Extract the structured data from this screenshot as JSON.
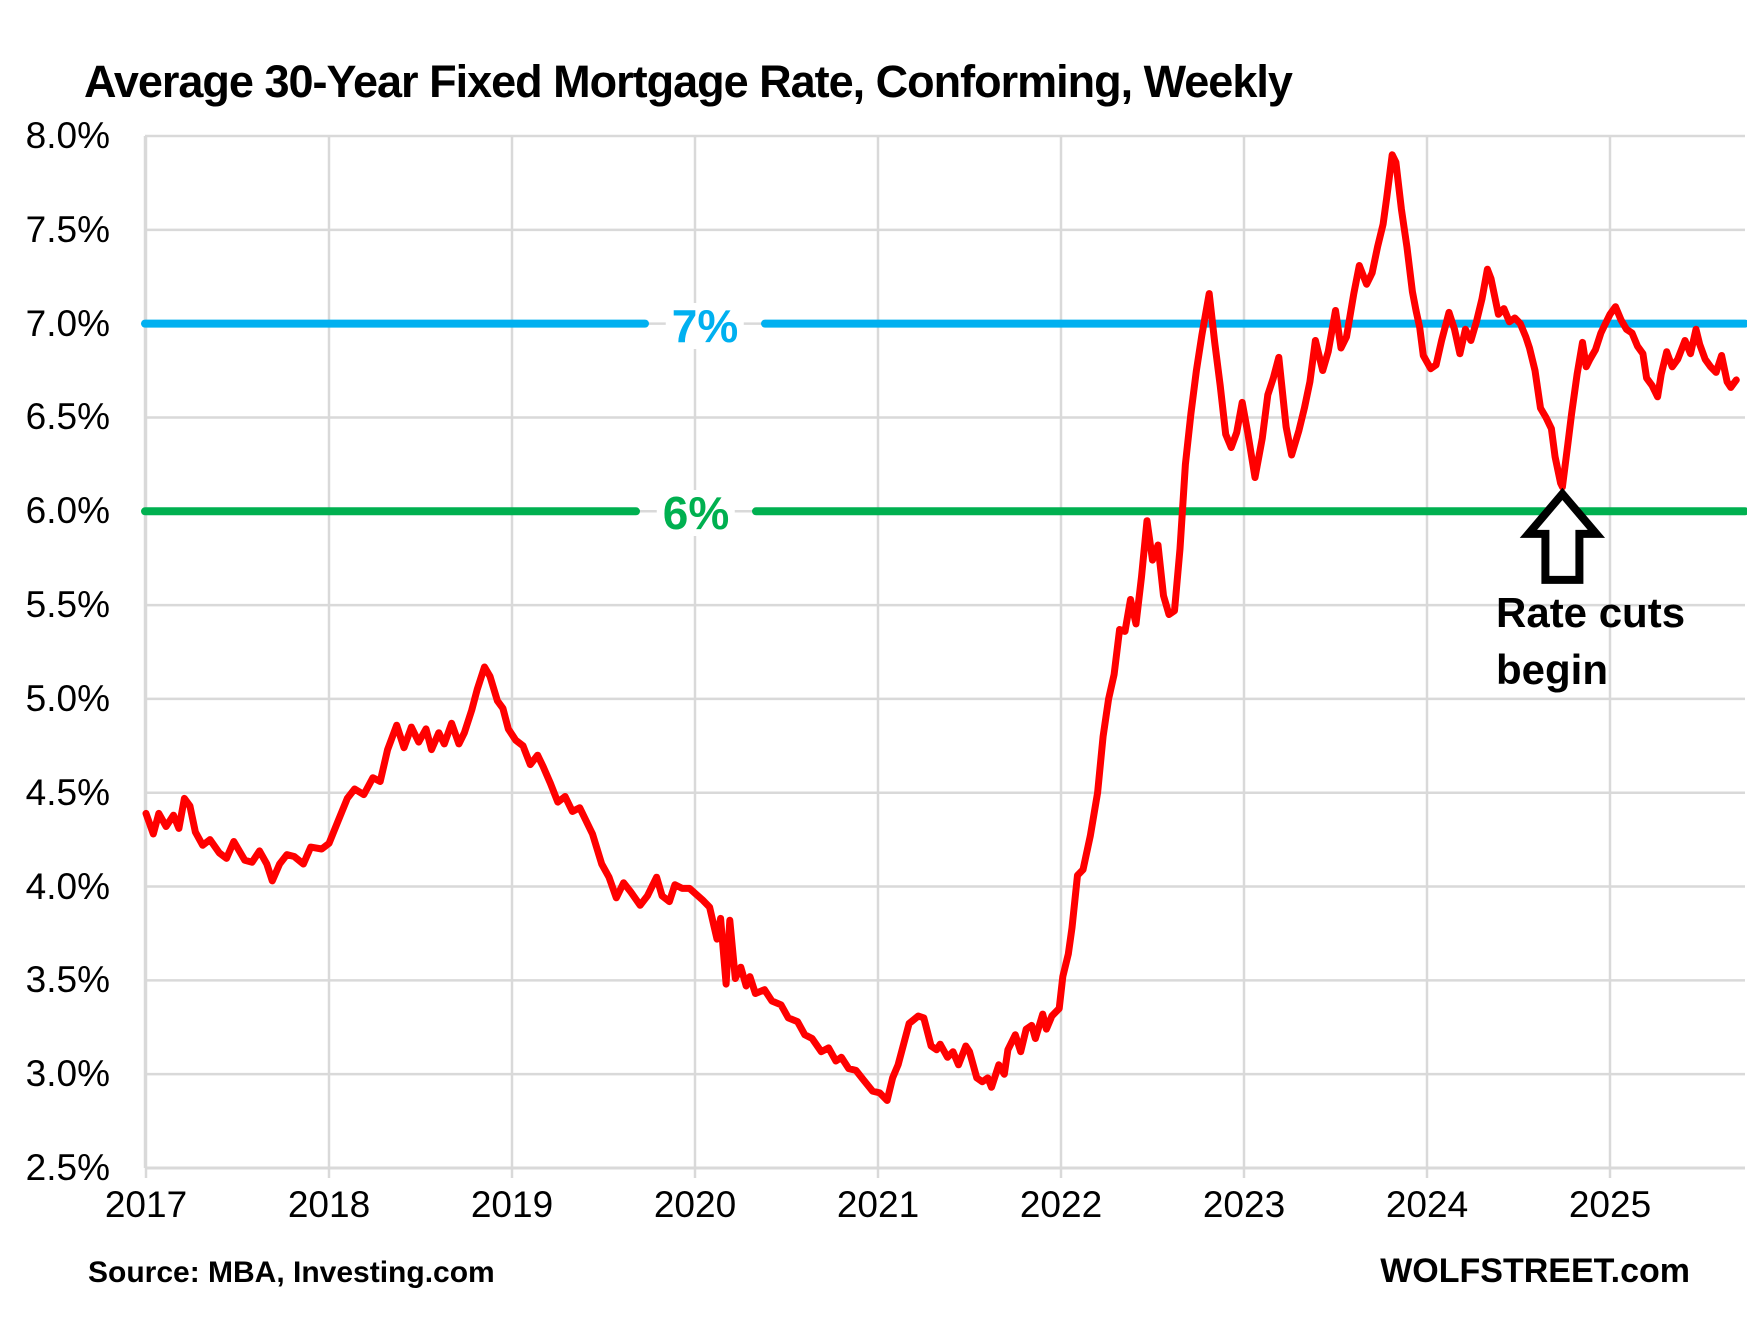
{
  "page": {
    "title": "Average 30-Year Fixed Mortgage Rate, Conforming, Weekly",
    "source": "Source: MBA, Investing.com",
    "branding": "WOLFSTREET.com"
  },
  "chart_data": {
    "type": "line",
    "title": "Average 30-Year Fixed Mortgage Rate, Conforming, Weekly",
    "xlabel": "",
    "ylabel": "",
    "grid": true,
    "grid_color": "#D9D9D9",
    "x_axis": {
      "min": 2017.0,
      "max": 2025.72,
      "ticks": [
        2017,
        2018,
        2019,
        2020,
        2021,
        2022,
        2023,
        2024,
        2025
      ],
      "tick_labels": [
        "2017",
        "2018",
        "2019",
        "2020",
        "2021",
        "2022",
        "2023",
        "2024",
        "2025"
      ]
    },
    "y_axis": {
      "min": 2.5,
      "max": 8.0,
      "tick_step": 0.5,
      "ticks": [
        8.0,
        7.5,
        7.0,
        6.5,
        6.0,
        5.5,
        5.0,
        4.5,
        4.0,
        3.5,
        3.0,
        2.5
      ],
      "tick_labels": [
        "8.0%",
        "7.5%",
        "7.0%",
        "6.5%",
        "6.0%",
        "5.5%",
        "5.0%",
        "4.5%",
        "4.0%",
        "3.5%",
        "3.0%",
        "2.5%"
      ]
    },
    "ref_lines": [
      {
        "label": "7%",
        "value": 7.0,
        "color": "#00B0F0"
      },
      {
        "label": "6%",
        "value": 6.0,
        "color": "#00B050"
      }
    ],
    "annotation": {
      "line1": "Rate cuts",
      "line2": "begin",
      "arrow_points_to": {
        "x": 2024.74,
        "y": 6.13
      }
    },
    "series": [
      {
        "name": "Average 30-year fixed mortgage rate, weekly",
        "color": "#FF0000",
        "points": [
          [
            2017.0,
            4.39
          ],
          [
            2017.04,
            4.28
          ],
          [
            2017.07,
            4.39
          ],
          [
            2017.11,
            4.32
          ],
          [
            2017.15,
            4.38
          ],
          [
            2017.18,
            4.31
          ],
          [
            2017.21,
            4.47
          ],
          [
            2017.24,
            4.43
          ],
          [
            2017.27,
            4.29
          ],
          [
            2017.31,
            4.22
          ],
          [
            2017.35,
            4.25
          ],
          [
            2017.4,
            4.18
          ],
          [
            2017.44,
            4.15
          ],
          [
            2017.48,
            4.24
          ],
          [
            2017.54,
            4.14
          ],
          [
            2017.58,
            4.13
          ],
          [
            2017.62,
            4.19
          ],
          [
            2017.66,
            4.12
          ],
          [
            2017.69,
            4.03
          ],
          [
            2017.73,
            4.12
          ],
          [
            2017.77,
            4.17
          ],
          [
            2017.81,
            4.16
          ],
          [
            2017.86,
            4.12
          ],
          [
            2017.9,
            4.21
          ],
          [
            2017.96,
            4.2
          ],
          [
            2018.0,
            4.23
          ],
          [
            2018.05,
            4.35
          ],
          [
            2018.1,
            4.47
          ],
          [
            2018.14,
            4.52
          ],
          [
            2018.19,
            4.49
          ],
          [
            2018.24,
            4.58
          ],
          [
            2018.28,
            4.56
          ],
          [
            2018.32,
            4.73
          ],
          [
            2018.37,
            4.86
          ],
          [
            2018.41,
            4.74
          ],
          [
            2018.45,
            4.85
          ],
          [
            2018.49,
            4.77
          ],
          [
            2018.53,
            4.84
          ],
          [
            2018.56,
            4.73
          ],
          [
            2018.6,
            4.82
          ],
          [
            2018.63,
            4.76
          ],
          [
            2018.67,
            4.87
          ],
          [
            2018.71,
            4.76
          ],
          [
            2018.74,
            4.82
          ],
          [
            2018.78,
            4.94
          ],
          [
            2018.81,
            5.05
          ],
          [
            2018.85,
            5.17
          ],
          [
            2018.88,
            5.12
          ],
          [
            2018.92,
            4.99
          ],
          [
            2018.95,
            4.95
          ],
          [
            2018.98,
            4.84
          ],
          [
            2019.02,
            4.78
          ],
          [
            2019.06,
            4.75
          ],
          [
            2019.1,
            4.65
          ],
          [
            2019.14,
            4.7
          ],
          [
            2019.17,
            4.64
          ],
          [
            2019.21,
            4.55
          ],
          [
            2019.25,
            4.45
          ],
          [
            2019.29,
            4.48
          ],
          [
            2019.33,
            4.4
          ],
          [
            2019.37,
            4.42
          ],
          [
            2019.44,
            4.28
          ],
          [
            2019.49,
            4.12
          ],
          [
            2019.53,
            4.05
          ],
          [
            2019.57,
            3.94
          ],
          [
            2019.61,
            4.02
          ],
          [
            2019.65,
            3.97
          ],
          [
            2019.7,
            3.9
          ],
          [
            2019.74,
            3.95
          ],
          [
            2019.79,
            4.05
          ],
          [
            2019.82,
            3.95
          ],
          [
            2019.86,
            3.92
          ],
          [
            2019.89,
            4.01
          ],
          [
            2019.93,
            3.99
          ],
          [
            2019.97,
            3.99
          ],
          [
            2020.04,
            3.93
          ],
          [
            2020.08,
            3.89
          ],
          [
            2020.12,
            3.72
          ],
          [
            2020.14,
            3.83
          ],
          [
            2020.17,
            3.48
          ],
          [
            2020.19,
            3.82
          ],
          [
            2020.22,
            3.51
          ],
          [
            2020.25,
            3.57
          ],
          [
            2020.28,
            3.47
          ],
          [
            2020.3,
            3.52
          ],
          [
            2020.33,
            3.43
          ],
          [
            2020.38,
            3.45
          ],
          [
            2020.42,
            3.39
          ],
          [
            2020.47,
            3.37
          ],
          [
            2020.51,
            3.3
          ],
          [
            2020.56,
            3.28
          ],
          [
            2020.6,
            3.21
          ],
          [
            2020.64,
            3.19
          ],
          [
            2020.69,
            3.12
          ],
          [
            2020.73,
            3.14
          ],
          [
            2020.77,
            3.07
          ],
          [
            2020.8,
            3.09
          ],
          [
            2020.84,
            3.03
          ],
          [
            2020.88,
            3.02
          ],
          [
            2020.92,
            2.97
          ],
          [
            2020.97,
            2.91
          ],
          [
            2021.01,
            2.9
          ],
          [
            2021.05,
            2.86
          ],
          [
            2021.08,
            2.98
          ],
          [
            2021.11,
            3.05
          ],
          [
            2021.14,
            3.16
          ],
          [
            2021.17,
            3.27
          ],
          [
            2021.22,
            3.31
          ],
          [
            2021.25,
            3.3
          ],
          [
            2021.29,
            3.15
          ],
          [
            2021.32,
            3.13
          ],
          [
            2021.34,
            3.16
          ],
          [
            2021.38,
            3.09
          ],
          [
            2021.41,
            3.12
          ],
          [
            2021.44,
            3.05
          ],
          [
            2021.48,
            3.15
          ],
          [
            2021.5,
            3.12
          ],
          [
            2021.54,
            2.98
          ],
          [
            2021.57,
            2.96
          ],
          [
            2021.6,
            2.98
          ],
          [
            2021.62,
            2.93
          ],
          [
            2021.66,
            3.05
          ],
          [
            2021.69,
            3.0
          ],
          [
            2021.71,
            3.13
          ],
          [
            2021.75,
            3.21
          ],
          [
            2021.78,
            3.12
          ],
          [
            2021.81,
            3.24
          ],
          [
            2021.84,
            3.26
          ],
          [
            2021.86,
            3.19
          ],
          [
            2021.9,
            3.32
          ],
          [
            2021.92,
            3.24
          ],
          [
            2021.95,
            3.31
          ],
          [
            2021.99,
            3.35
          ],
          [
            2022.01,
            3.52
          ],
          [
            2022.04,
            3.64
          ],
          [
            2022.06,
            3.78
          ],
          [
            2022.09,
            4.06
          ],
          [
            2022.12,
            4.09
          ],
          [
            2022.16,
            4.27
          ],
          [
            2022.2,
            4.5
          ],
          [
            2022.23,
            4.8
          ],
          [
            2022.26,
            5.0
          ],
          [
            2022.29,
            5.13
          ],
          [
            2022.32,
            5.37
          ],
          [
            2022.35,
            5.36
          ],
          [
            2022.38,
            5.53
          ],
          [
            2022.41,
            5.4
          ],
          [
            2022.44,
            5.65
          ],
          [
            2022.47,
            5.95
          ],
          [
            2022.5,
            5.74
          ],
          [
            2022.53,
            5.82
          ],
          [
            2022.56,
            5.55
          ],
          [
            2022.59,
            5.45
          ],
          [
            2022.62,
            5.47
          ],
          [
            2022.65,
            5.8
          ],
          [
            2022.68,
            6.25
          ],
          [
            2022.71,
            6.52
          ],
          [
            2022.74,
            6.75
          ],
          [
            2022.77,
            6.94
          ],
          [
            2022.81,
            7.16
          ],
          [
            2022.84,
            6.9
          ],
          [
            2022.87,
            6.67
          ],
          [
            2022.9,
            6.41
          ],
          [
            2022.93,
            6.34
          ],
          [
            2022.96,
            6.42
          ],
          [
            2022.99,
            6.58
          ],
          [
            2023.02,
            6.42
          ],
          [
            2023.06,
            6.18
          ],
          [
            2023.1,
            6.39
          ],
          [
            2023.13,
            6.62
          ],
          [
            2023.16,
            6.71
          ],
          [
            2023.19,
            6.82
          ],
          [
            2023.23,
            6.45
          ],
          [
            2023.26,
            6.3
          ],
          [
            2023.3,
            6.43
          ],
          [
            2023.33,
            6.55
          ],
          [
            2023.36,
            6.69
          ],
          [
            2023.39,
            6.91
          ],
          [
            2023.43,
            6.75
          ],
          [
            2023.46,
            6.85
          ],
          [
            2023.5,
            7.07
          ],
          [
            2023.53,
            6.87
          ],
          [
            2023.56,
            6.93
          ],
          [
            2023.6,
            7.16
          ],
          [
            2023.63,
            7.31
          ],
          [
            2023.67,
            7.21
          ],
          [
            2023.7,
            7.27
          ],
          [
            2023.73,
            7.41
          ],
          [
            2023.76,
            7.53
          ],
          [
            2023.78,
            7.67
          ],
          [
            2023.81,
            7.9
          ],
          [
            2023.83,
            7.86
          ],
          [
            2023.86,
            7.61
          ],
          [
            2023.89,
            7.41
          ],
          [
            2023.92,
            7.17
          ],
          [
            2023.94,
            7.07
          ],
          [
            2023.96,
            6.98
          ],
          [
            2023.98,
            6.83
          ],
          [
            2024.02,
            6.76
          ],
          [
            2024.05,
            6.78
          ],
          [
            2024.08,
            6.91
          ],
          [
            2024.12,
            7.06
          ],
          [
            2024.15,
            6.97
          ],
          [
            2024.18,
            6.84
          ],
          [
            2024.21,
            6.97
          ],
          [
            2024.24,
            6.91
          ],
          [
            2024.27,
            7.01
          ],
          [
            2024.3,
            7.13
          ],
          [
            2024.33,
            7.29
          ],
          [
            2024.35,
            7.24
          ],
          [
            2024.39,
            7.05
          ],
          [
            2024.42,
            7.08
          ],
          [
            2024.45,
            7.01
          ],
          [
            2024.48,
            7.03
          ],
          [
            2024.51,
            7.0
          ],
          [
            2024.54,
            6.93
          ],
          [
            2024.56,
            6.87
          ],
          [
            2024.59,
            6.75
          ],
          [
            2024.62,
            6.55
          ],
          [
            2024.65,
            6.5
          ],
          [
            2024.68,
            6.44
          ],
          [
            2024.7,
            6.29
          ],
          [
            2024.73,
            6.15
          ],
          [
            2024.74,
            6.13
          ],
          [
            2024.77,
            6.36
          ],
          [
            2024.79,
            6.52
          ],
          [
            2024.82,
            6.73
          ],
          [
            2024.85,
            6.9
          ],
          [
            2024.87,
            6.77
          ],
          [
            2024.89,
            6.81
          ],
          [
            2024.92,
            6.86
          ],
          [
            2024.95,
            6.95
          ],
          [
            2024.97,
            6.99
          ],
          [
            2025.0,
            7.05
          ],
          [
            2025.03,
            7.09
          ],
          [
            2025.06,
            7.02
          ],
          [
            2025.09,
            6.97
          ],
          [
            2025.12,
            6.95
          ],
          [
            2025.15,
            6.88
          ],
          [
            2025.18,
            6.84
          ],
          [
            2025.2,
            6.71
          ],
          [
            2025.23,
            6.67
          ],
          [
            2025.26,
            6.61
          ],
          [
            2025.28,
            6.73
          ],
          [
            2025.31,
            6.85
          ],
          [
            2025.34,
            6.77
          ],
          [
            2025.37,
            6.81
          ],
          [
            2025.41,
            6.91
          ],
          [
            2025.44,
            6.84
          ],
          [
            2025.47,
            6.97
          ],
          [
            2025.49,
            6.89
          ],
          [
            2025.52,
            6.81
          ],
          [
            2025.55,
            6.77
          ],
          [
            2025.58,
            6.74
          ],
          [
            2025.61,
            6.83
          ],
          [
            2025.64,
            6.69
          ],
          [
            2025.66,
            6.66
          ],
          [
            2025.69,
            6.7
          ]
        ]
      }
    ]
  }
}
